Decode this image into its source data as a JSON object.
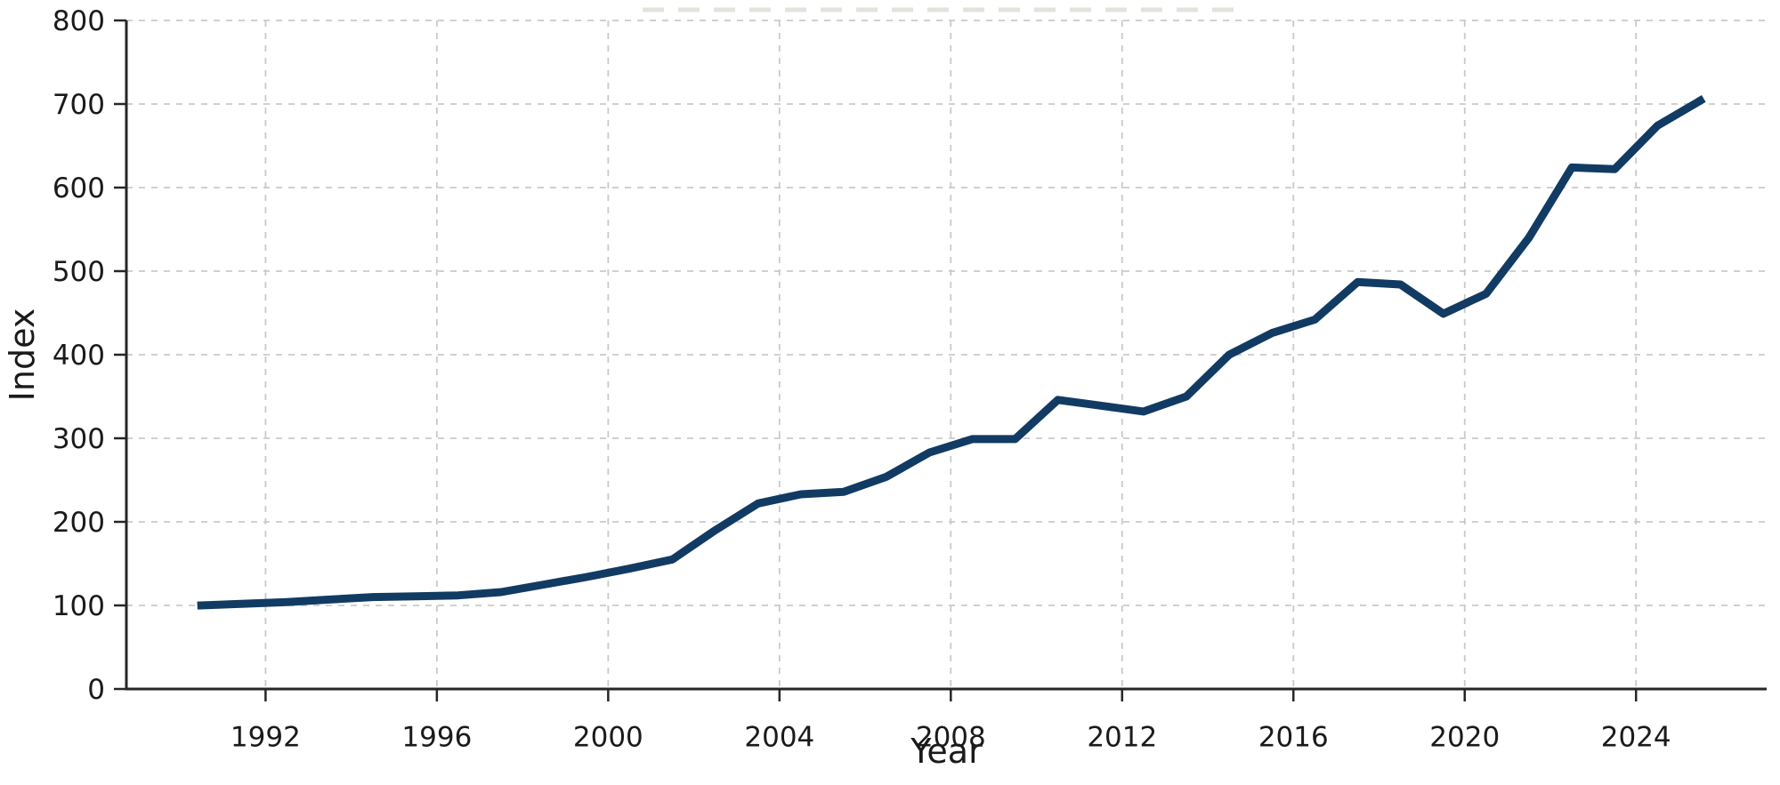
{
  "chart_data": {
    "type": "line",
    "title": "",
    "xlabel": "Year",
    "ylabel": "Index",
    "series": [
      {
        "name": "Index",
        "years": [
          1990,
          1991,
          1992,
          1993,
          1994,
          1995,
          1996,
          1997,
          1998,
          1999,
          2000,
          2001,
          2002,
          2003,
          2004,
          2005,
          2006,
          2007,
          2008,
          2009,
          2010,
          2011,
          2012,
          2013,
          2014,
          2015,
          2016,
          2017,
          2018,
          2019,
          2020,
          2021,
          2022,
          2023,
          2024,
          2025
        ],
        "values": [
          100,
          102,
          104,
          107,
          110,
          111,
          112,
          116,
          125,
          134,
          144,
          155,
          190,
          222,
          233,
          236,
          254,
          283,
          299,
          299,
          346,
          339,
          332,
          350,
          400,
          426,
          442,
          487,
          484,
          449,
          473,
          540,
          624,
          622,
          674,
          704
        ]
      }
    ],
    "xticks": [
      1992,
      1996,
      2000,
      2004,
      2008,
      2012,
      2016,
      2020,
      2024
    ],
    "yticks": [
      0,
      100,
      200,
      300,
      400,
      500,
      600,
      700,
      800
    ],
    "xlim": [
      1988.75,
      2027.05
    ],
    "ylim": [
      0,
      800
    ],
    "plot_x_offset": 0.5,
    "grid": true,
    "legend": false,
    "colors": {
      "line": "#123b63",
      "grid": "#c9c9c9",
      "spine": "#262626",
      "text": "#1a1a1a",
      "background": "#ffffff",
      "title_remnant": "#e2e4dc"
    }
  }
}
